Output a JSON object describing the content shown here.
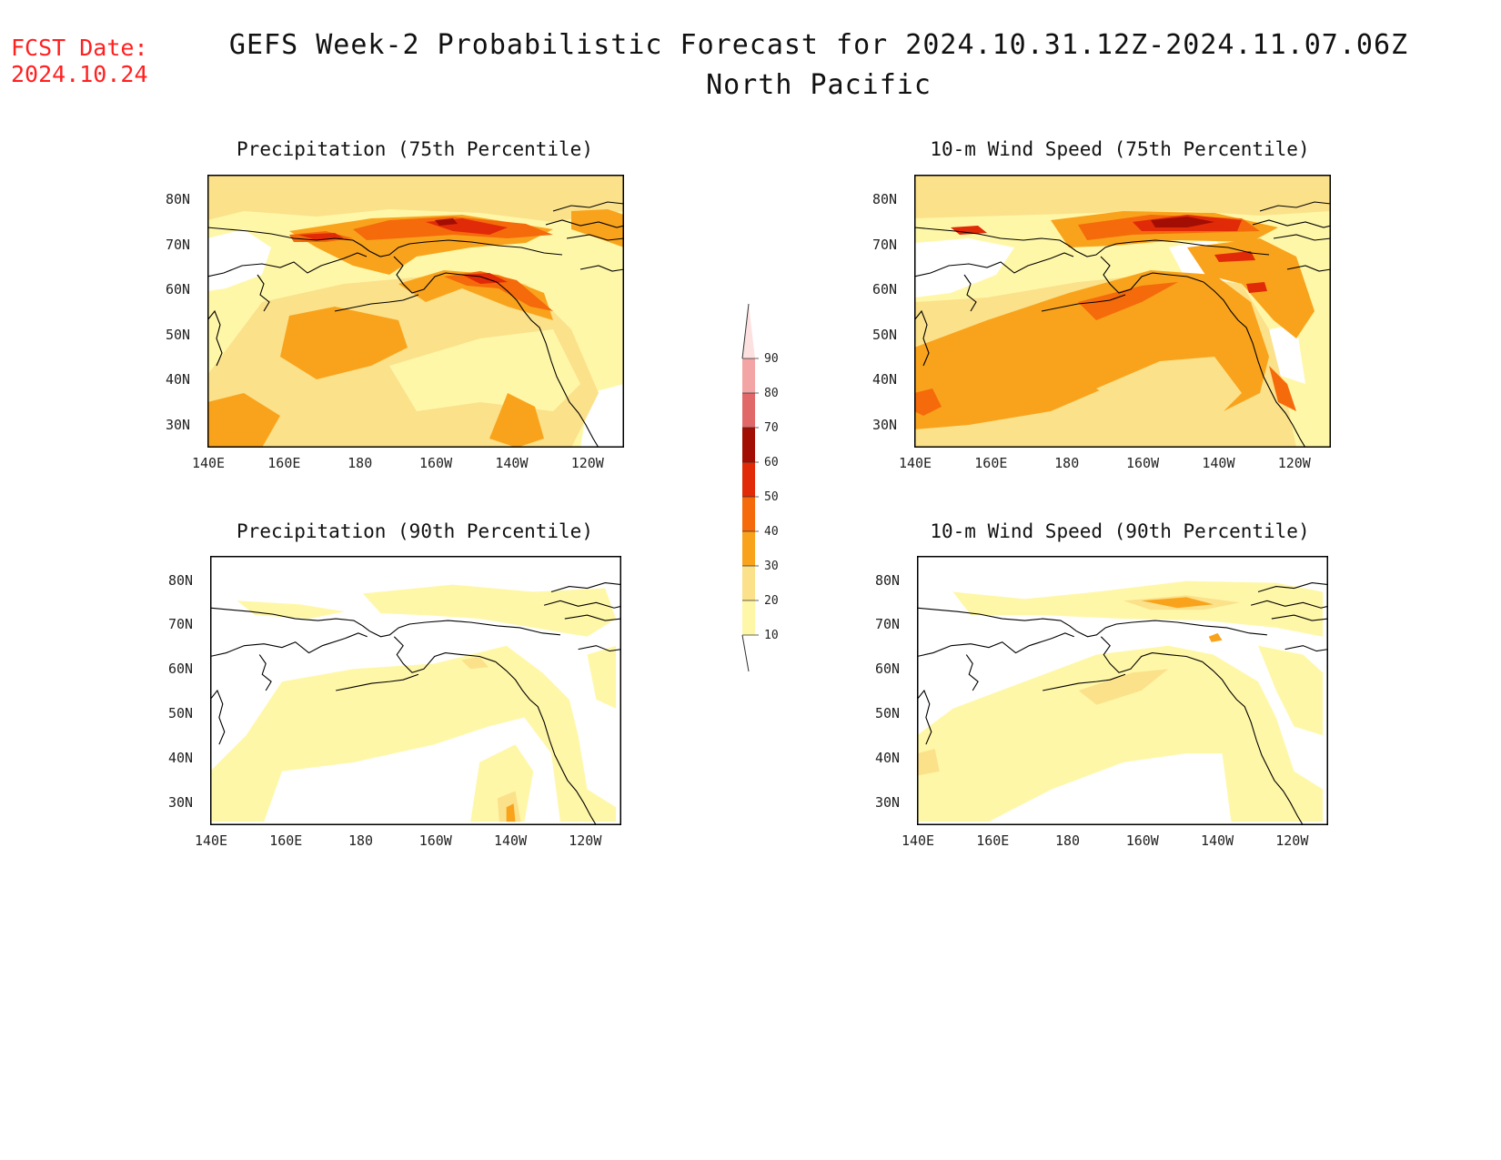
{
  "header": {
    "fcst_label": "FCST Date:",
    "fcst_date": "2024.10.24",
    "title": "GEFS Week-2 Probabilistic Forecast for 2024.10.31.12Z-2024.11.07.06Z",
    "subtitle": "North Pacific"
  },
  "panels": [
    {
      "id": "precip75",
      "title": "Precipitation (75th Percentile)"
    },
    {
      "id": "wind75",
      "title": "10-m Wind Speed (75th Percentile)"
    },
    {
      "id": "precip90",
      "title": "Precipitation (90th Percentile)"
    },
    {
      "id": "wind90",
      "title": "10-m Wind Speed (90th Percentile)"
    }
  ],
  "axes": {
    "lon_labels": [
      "140E",
      "160E",
      "180",
      "160W",
      "140W",
      "120W"
    ],
    "lat_labels": [
      "80N",
      "70N",
      "60N",
      "50N",
      "40N",
      "30N"
    ]
  },
  "colorbar": {
    "levels": [
      "10",
      "20",
      "30",
      "40",
      "50",
      "60",
      "70",
      "80",
      "90"
    ],
    "colors": [
      "#fff7a8",
      "#fbe18a",
      "#f9a31c",
      "#f56a0a",
      "#e12a07",
      "#a20d04",
      "#e06868",
      "#f3a4a4",
      "#fde1e1"
    ]
  },
  "colors": {
    "title": "#111111",
    "fcst": "#ff2020",
    "coast": "#000000"
  }
}
